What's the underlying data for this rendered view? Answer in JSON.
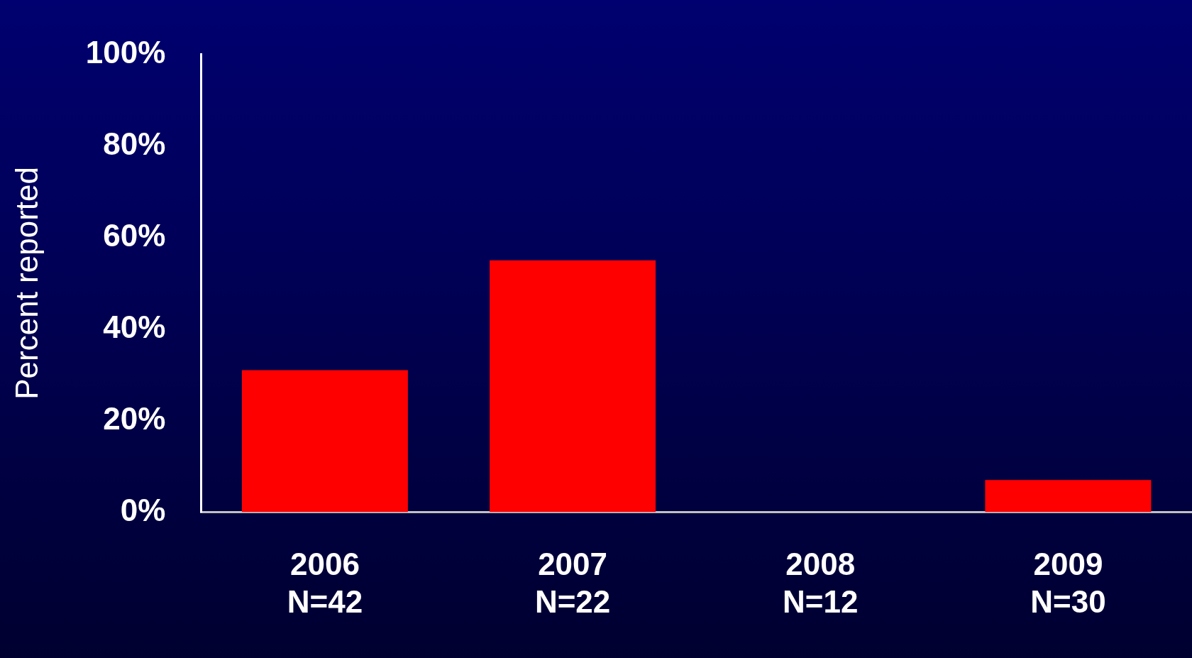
{
  "chart_data": {
    "type": "bar",
    "ylabel": "Percent reported",
    "categories": [
      "2006\nN=42",
      "2007\nN=22",
      "2008\nN=12",
      "2009\nN=30"
    ],
    "values": [
      31,
      55,
      0,
      7
    ],
    "color": "#ff0000",
    "ylim": [
      0,
      100
    ],
    "yticks": [
      {
        "value": 0,
        "label": "0%"
      },
      {
        "value": 20,
        "label": "20%"
      },
      {
        "value": 40,
        "label": "40%"
      },
      {
        "value": 60,
        "label": "60%"
      },
      {
        "value": 80,
        "label": "80%"
      },
      {
        "value": 100,
        "label": "100%"
      }
    ],
    "grid": false,
    "legend": false
  }
}
